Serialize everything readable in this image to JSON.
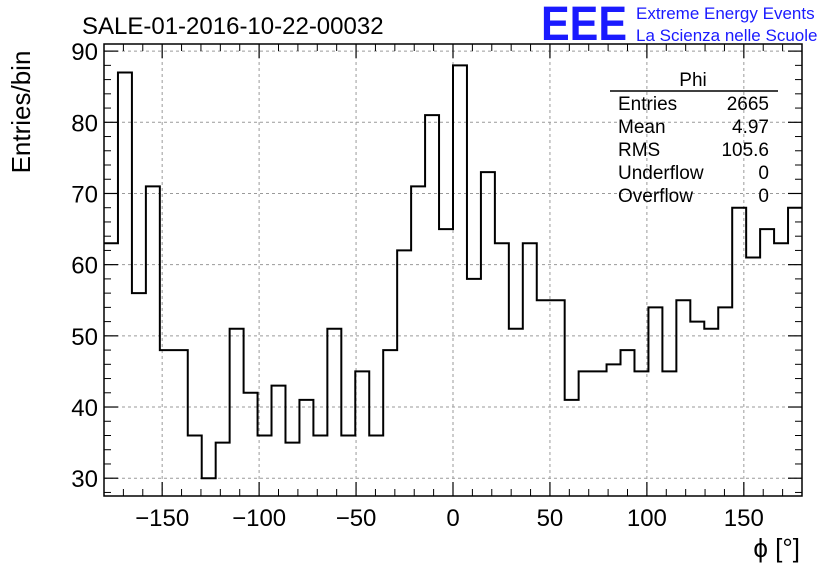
{
  "chart_data": {
    "type": "bar",
    "style": "step-histogram",
    "title": "SALE-01-2016-10-22-00032",
    "xlabel": "ϕ [°]",
    "ylabel": "Entries/bin",
    "xlim": [
      -180,
      180
    ],
    "ylim": [
      27.5,
      91
    ],
    "bin_width": 7.2,
    "x_ticks": [
      -150,
      -100,
      -50,
      0,
      50,
      100,
      150
    ],
    "y_ticks": [
      30,
      40,
      50,
      60,
      70,
      80,
      90
    ],
    "grid": true,
    "line_color": "#000000",
    "values": [
      63,
      87,
      56,
      71,
      48,
      48,
      36,
      30,
      35,
      51,
      42,
      36,
      43,
      35,
      41,
      36,
      51,
      36,
      45,
      36,
      48,
      62,
      71,
      81,
      65,
      88,
      58,
      73,
      63,
      51,
      63,
      55,
      55,
      41,
      45,
      45,
      46,
      48,
      45,
      54,
      45,
      55,
      52,
      51,
      54,
      68,
      61,
      65,
      63,
      68
    ]
  },
  "stats_box": {
    "name": "Phi",
    "rows": [
      {
        "label": "Entries",
        "value": "2665"
      },
      {
        "label": "Mean",
        "value": "4.97"
      },
      {
        "label": "RMS",
        "value": "105.6"
      },
      {
        "label": "Underflow",
        "value": "0"
      },
      {
        "label": "Overflow",
        "value": "0"
      }
    ]
  },
  "logo": {
    "text": "EEE",
    "line1": "Extreme Energy Events",
    "line2": "La Scienza nelle Scuole",
    "color": "#1a1aff"
  }
}
